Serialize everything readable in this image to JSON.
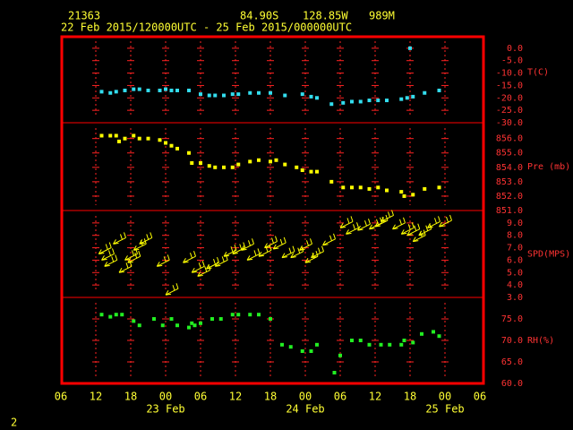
{
  "header": {
    "station": "21363",
    "lat": "84.90S",
    "lon": "128.85W",
    "elevation": "989M",
    "period": "22 Feb 2015/120000UTC - 25 Feb 2015/000000UTC"
  },
  "page_number": "2",
  "x_axis": {
    "xlim": [
      6,
      78
    ],
    "xticks": [
      {
        "value": 6,
        "label": "06"
      },
      {
        "value": 12,
        "label": "12"
      },
      {
        "value": 18,
        "label": "18"
      },
      {
        "value": 24,
        "label": "00"
      },
      {
        "value": 30,
        "label": "06"
      },
      {
        "value": 36,
        "label": "12"
      },
      {
        "value": 42,
        "label": "18"
      },
      {
        "value": 48,
        "label": "00"
      },
      {
        "value": 54,
        "label": "06"
      },
      {
        "value": 60,
        "label": "12"
      },
      {
        "value": 66,
        "label": "18"
      },
      {
        "value": 72,
        "label": "00"
      },
      {
        "value": 78,
        "label": "06"
      }
    ],
    "date_labels": [
      {
        "value": 24,
        "label": "23 Feb"
      },
      {
        "value": 48,
        "label": "24 Feb"
      },
      {
        "value": 72,
        "label": "25 Feb"
      }
    ]
  },
  "chart_data": [
    {
      "type": "scatter",
      "ylabel": "T(C)",
      "color": "#33ddee",
      "ylim": [
        -30,
        5
      ],
      "yticks": [
        {
          "value": 0,
          "label": "0.0"
        },
        {
          "value": -5,
          "label": "-5.0"
        },
        {
          "value": -10,
          "label": "-10.0"
        },
        {
          "value": -15,
          "label": "-15.0"
        },
        {
          "value": -20,
          "label": "-20.0"
        },
        {
          "value": -25,
          "label": "-25.0"
        },
        {
          "value": -30,
          "label": "-30.0"
        }
      ],
      "x": [
        13,
        14.5,
        15.5,
        17,
        18.5,
        19.5,
        21,
        23,
        24,
        25,
        26,
        28,
        30,
        31.5,
        32.5,
        34,
        35.5,
        36.5,
        38.5,
        40,
        42,
        44.5,
        47.5,
        49,
        50,
        52.5,
        54.5,
        56,
        57.5,
        59,
        60.5,
        62,
        64.5,
        65.5,
        66,
        66.5,
        68.5,
        71
      ],
      "values": [
        -17.5,
        -18,
        -17.5,
        -17,
        -16.5,
        -16.5,
        -17,
        -17,
        -16.5,
        -17,
        -17,
        -17,
        -18.5,
        -19,
        -19,
        -19,
        -18.5,
        -18.5,
        -18,
        -18,
        -18,
        -19,
        -18.5,
        -19.5,
        -20,
        -22.5,
        -22,
        -21.5,
        -21.5,
        -21,
        -21,
        -21,
        -20.5,
        -20,
        0,
        -19.5,
        -18,
        -17
      ]
    },
    {
      "type": "scatter",
      "ylabel": "Pre (mb)",
      "color": "#ffff00",
      "ylim": [
        851,
        857.1
      ],
      "yticks": [
        {
          "value": 856,
          "label": "856.0"
        },
        {
          "value": 855,
          "label": "855.0"
        },
        {
          "value": 854,
          "label": "854.0"
        },
        {
          "value": 853,
          "label": "853.0"
        },
        {
          "value": 852,
          "label": "852.0"
        },
        {
          "value": 851,
          "label": "851.0"
        }
      ],
      "x": [
        13,
        14.5,
        15.5,
        16,
        17,
        18.5,
        19.5,
        21,
        23,
        24,
        25,
        26,
        28,
        28.5,
        30,
        31.5,
        32.5,
        34,
        35.5,
        36.5,
        38.5,
        40,
        42,
        43,
        44.5,
        46.5,
        47.5,
        49,
        50,
        52.5,
        54.5,
        56,
        57.5,
        59,
        60.5,
        62,
        64.5,
        65,
        66.5,
        68.5,
        71
      ],
      "values": [
        856.2,
        856.2,
        856.2,
        855.8,
        856.0,
        856.2,
        856.0,
        856.0,
        855.9,
        855.7,
        855.5,
        855.3,
        855.0,
        854.3,
        854.3,
        854.1,
        854.0,
        854.0,
        854.0,
        854.2,
        854.4,
        854.5,
        854.4,
        854.5,
        854.2,
        854.0,
        853.8,
        853.7,
        853.7,
        853.0,
        852.6,
        852.6,
        852.6,
        852.5,
        852.6,
        852.4,
        852.3,
        852.0,
        852.1,
        852.5,
        852.6
      ]
    },
    {
      "type": "barb",
      "ylabel": "SPD(MPS)",
      "color": "#ffff00",
      "ylim": [
        3,
        10
      ],
      "yticks": [
        {
          "value": 9,
          "label": "9.0"
        },
        {
          "value": 8,
          "label": "8.0"
        },
        {
          "value": 7,
          "label": "7.0"
        },
        {
          "value": 6,
          "label": "6.0"
        },
        {
          "value": 5,
          "label": "5.0"
        },
        {
          "value": 4,
          "label": "4.0"
        },
        {
          "value": 3,
          "label": "3.0"
        }
      ],
      "x": [
        12.5,
        13,
        13.5,
        15,
        16,
        17,
        17.5,
        18.5,
        19.5,
        22.5,
        24,
        27,
        28.5,
        29.5,
        31,
        32.5,
        34,
        35.5,
        37,
        38,
        40,
        41,
        42.5,
        44,
        45.5,
        47,
        48,
        49,
        51,
        54,
        55,
        57,
        59,
        60,
        61,
        63,
        64.5,
        65.5,
        66.5,
        67.5,
        69,
        71
      ],
      "values": [
        6.5,
        6,
        5.5,
        7.3,
        5,
        6,
        5.8,
        6.8,
        7.3,
        5.5,
        3.2,
        5.8,
        5,
        4.7,
        5.3,
        5.5,
        6.3,
        6.5,
        6.8,
        6,
        6.3,
        7,
        6.9,
        6.2,
        6.2,
        6.8,
        5.8,
        6.2,
        7.2,
        8.6,
        8.1,
        8.4,
        8.5,
        8.7,
        9.1,
        8.5,
        8.1,
        8.0,
        7.5,
        8.0,
        8.6,
        8.7
      ]
    },
    {
      "type": "scatter",
      "ylabel": "RH(%)",
      "color": "#22ee22",
      "ylim": [
        60,
        80
      ],
      "yticks": [
        {
          "value": 75,
          "label": "75.0"
        },
        {
          "value": 70,
          "label": "70.0"
        },
        {
          "value": 65,
          "label": "65.0"
        },
        {
          "value": 60,
          "label": "60.0"
        }
      ],
      "x": [
        13,
        14.5,
        15.5,
        16.5,
        18.5,
        19.5,
        22,
        23.5,
        25,
        26,
        28,
        28.5,
        29,
        30,
        32,
        33.5,
        35.5,
        36.5,
        38.5,
        40,
        42,
        44,
        45.5,
        47.5,
        49,
        50,
        53,
        54,
        56,
        57.5,
        59,
        61,
        62.5,
        64.5,
        65,
        66.5,
        68,
        70,
        71
      ],
      "values": [
        76,
        75.5,
        76,
        76,
        74.5,
        73.5,
        75,
        73.5,
        75,
        73.5,
        73,
        74,
        73.5,
        74,
        75,
        75,
        76,
        76,
        76,
        76,
        75,
        69,
        68.5,
        67.5,
        67.5,
        69,
        62.5,
        66.5,
        70,
        70,
        69,
        69,
        69,
        69,
        70,
        69.5,
        71.5,
        72,
        71
      ]
    }
  ]
}
